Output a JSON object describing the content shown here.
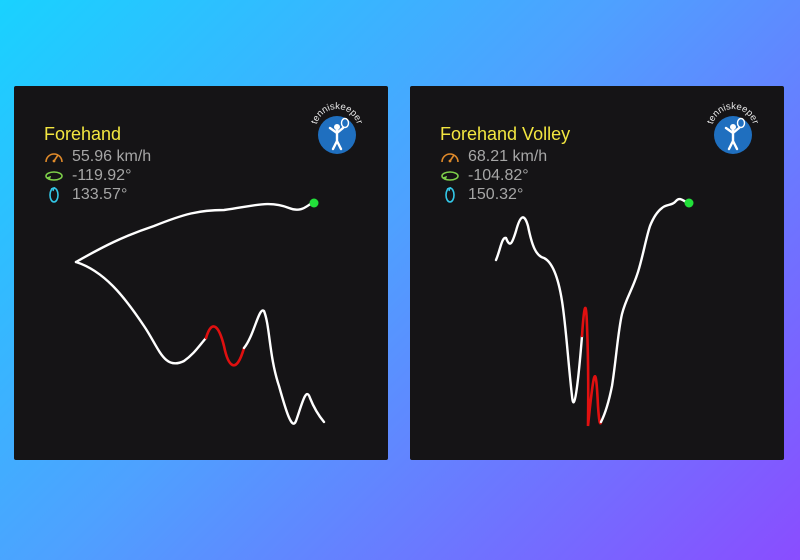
{
  "cards": [
    {
      "stroke_type": "Forehand",
      "speed": "55.96 km/h",
      "angle_1": "-119.92°",
      "angle_2": "133.57°"
    },
    {
      "stroke_type": "Forehand Volley",
      "speed": "68.21 km/h",
      "angle_1": "-104.82°",
      "angle_2": "150.32°"
    }
  ],
  "brand": "tenniskeeper",
  "colors": {
    "title": "#f2e640",
    "metric_text": "#a6a6a6",
    "speed_icon": "#e08a2a",
    "rotation_icon": "#7ed04a",
    "spin_icon": "#33c8e8",
    "trace": "#ffffff",
    "impact": "#e01010",
    "end_point": "#22e03a",
    "logo": "#1f6fbf"
  }
}
